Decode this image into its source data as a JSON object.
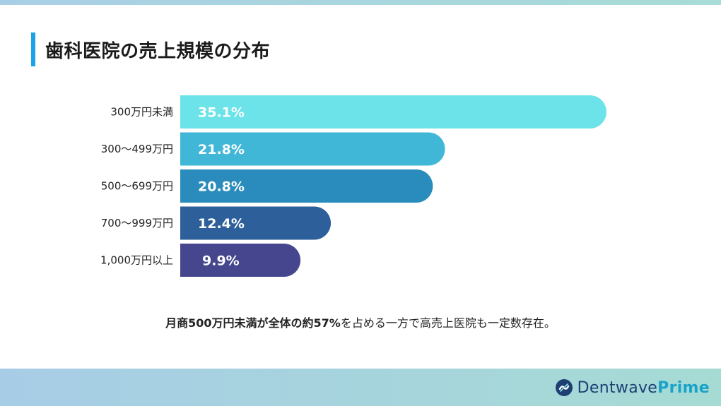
{
  "title": "歯科医院の売上規模の分布",
  "caption": {
    "bold": "月商500万円未満が全体の約57%",
    "rest": "を占める一方で高売上医院も一定数存在。"
  },
  "logo": {
    "brand": "Dentwave",
    "sub": "Prime"
  },
  "colors": [
    "#6be3e8",
    "#41b7d8",
    "#2a8cbc",
    "#2d5f9b",
    "#46468e"
  ],
  "chart_data": {
    "type": "bar",
    "orientation": "horizontal",
    "categories": [
      "300万円未満",
      "300〜499万円",
      "500〜699万円",
      "700〜999万円",
      "1,000万円以上"
    ],
    "values": [
      35.1,
      21.8,
      20.8,
      12.4,
      9.9
    ],
    "data_labels": [
      "35.1%",
      "21.8%",
      "20.8%",
      "12.4%",
      "9.9%"
    ],
    "xlim": [
      0,
      35.1
    ],
    "grid": false,
    "legend": "none"
  }
}
